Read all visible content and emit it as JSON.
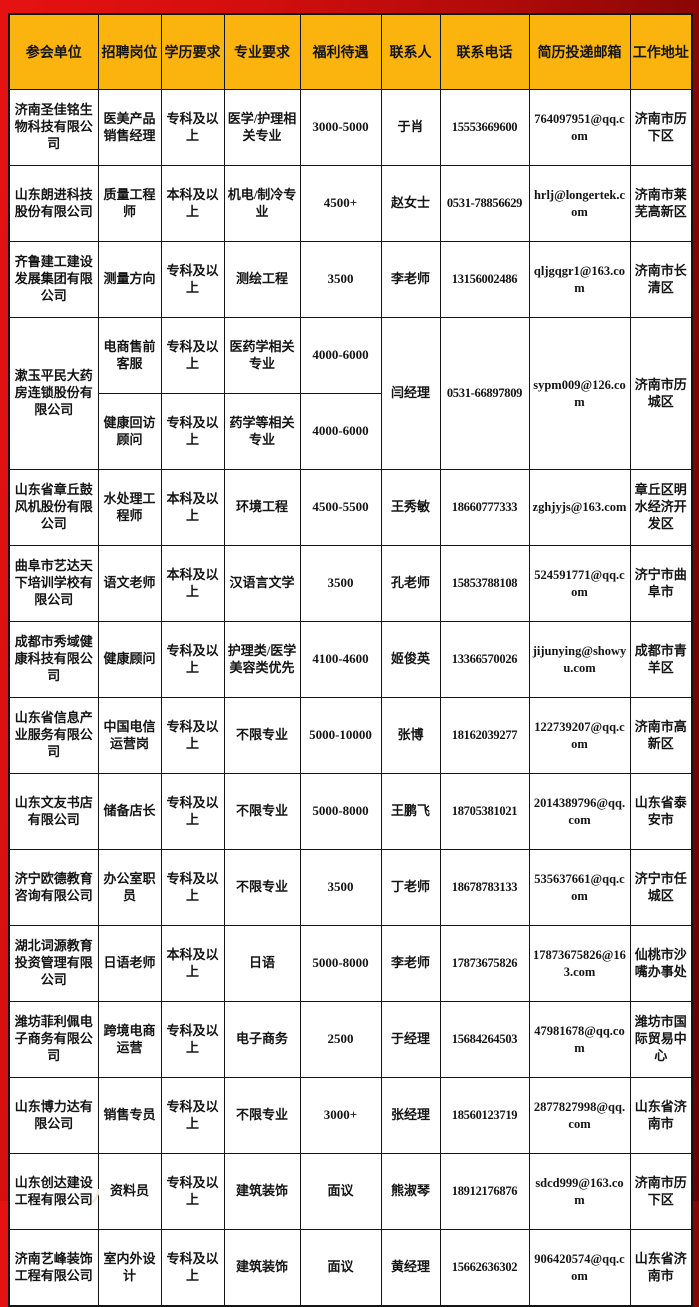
{
  "page": {
    "background_colors": [
      "#e61212",
      "#b00a0a",
      "#640303"
    ],
    "header_bg_color": "#fbb40d",
    "cell_bg_color": "#ffffff",
    "border_color": "#141414",
    "text_color": "#141414"
  },
  "table": {
    "headers": [
      "参会单位",
      "招聘岗位",
      "学历要求",
      "专业要求",
      "福利待遇",
      "联系人",
      "联系电话",
      "简历投递邮箱",
      "工作地址"
    ],
    "companies": [
      {
        "name": "济南圣佳铭生物科技有限公司",
        "positions": [
          {
            "job": "医美产品销售经理",
            "edu": "专科及以上",
            "major": "医学/护理相关专业",
            "salary": "3000-5000"
          }
        ],
        "contact": "于肖",
        "phone": "15553669600",
        "email": "764097951@qq.com",
        "address": "济南市历下区"
      },
      {
        "name": "山东朗进科技股份有限公司",
        "positions": [
          {
            "job": "质量工程师",
            "edu": "本科及以上",
            "major": "机电/制冷专业",
            "salary": "4500+"
          }
        ],
        "contact": "赵女士",
        "phone": "0531-78856629",
        "email": "hrlj@longertek.com",
        "address": "济南市莱芜高新区"
      },
      {
        "name": "齐鲁建工建设发展集团有限公司",
        "positions": [
          {
            "job": "测量方向",
            "edu": "专科及以上",
            "major": "测绘工程",
            "salary": "3500"
          }
        ],
        "contact": "李老师",
        "phone": "13156002486",
        "email": "qljgqgr1@163.com",
        "address": "济南市长清区"
      },
      {
        "name": "漱玉平民大药房连锁股份有限公司",
        "positions": [
          {
            "job": "电商售前客服",
            "edu": "专科及以上",
            "major": "医药学相关专业",
            "salary": "4000-6000"
          },
          {
            "job": "健康回访顾问",
            "edu": "专科及以上",
            "major": "药学等相关专业",
            "salary": "4000-6000"
          }
        ],
        "contact": "闫经理",
        "phone": "0531-66897809",
        "email": "sypm009@126.com",
        "address": "济南市历城区"
      },
      {
        "name": "山东省章丘鼓风机股份有限公司",
        "positions": [
          {
            "job": "水处理工程师",
            "edu": "本科及以上",
            "major": "环境工程",
            "salary": "4500-5500"
          }
        ],
        "contact": "王秀敏",
        "phone": "18660777333",
        "email": "zghjyjs@163.com",
        "address": "章丘区明水经济开发区"
      },
      {
        "name": "曲阜市艺达天下培训学校有限公司",
        "positions": [
          {
            "job": "语文老师",
            "edu": "本科及以上",
            "major": "汉语言文学",
            "salary": "3500"
          }
        ],
        "contact": "孔老师",
        "phone": "15853788108",
        "email": "524591771@qq.com",
        "address": "济宁市曲阜市"
      },
      {
        "name": "成都市秀域健康科技有限公司",
        "positions": [
          {
            "job": "健康顾问",
            "edu": "专科及以上",
            "major": "护理类/医学美容类优先",
            "salary": "4100-4600"
          }
        ],
        "contact": "姬俊英",
        "phone": "13366570026",
        "email": "jijunying@showyu.com",
        "address": "成都市青羊区"
      },
      {
        "name": "山东省信息产业服务有限公司",
        "positions": [
          {
            "job": "中国电信运营岗",
            "edu": "专科及以上",
            "major": "不限专业",
            "salary": "5000-10000"
          }
        ],
        "contact": "张博",
        "phone": "18162039277",
        "email": "122739207@qq.com",
        "address": "济南市高新区"
      },
      {
        "name": "山东文友书店有限公司",
        "positions": [
          {
            "job": "储备店长",
            "edu": "专科及以上",
            "major": "不限专业",
            "salary": "5000-8000"
          }
        ],
        "contact": "王鹏飞",
        "phone": "18705381021",
        "email": "2014389796@qq.com",
        "address": "山东省泰安市"
      },
      {
        "name": "济宁欧德教育咨询有限公司",
        "positions": [
          {
            "job": "办公室职员",
            "edu": "专科及以上",
            "major": "不限专业",
            "salary": "3500"
          }
        ],
        "contact": "丁老师",
        "phone": "18678783133",
        "email": "535637661@qq.com",
        "address": "济宁市任城区"
      },
      {
        "name": "湖北词源教育投资管理有限公司",
        "positions": [
          {
            "job": "日语老师",
            "edu": "本科及以上",
            "major": "日语",
            "salary": "5000-8000"
          }
        ],
        "contact": "李老师",
        "phone": "17873675826",
        "email": "17873675826@163.com",
        "address": "仙桃市沙嘴办事处"
      },
      {
        "name": "潍坊菲利佩电子商务有限公司",
        "positions": [
          {
            "job": "跨境电商运营",
            "edu": "专科及以上",
            "major": "电子商务",
            "salary": "2500"
          }
        ],
        "contact": "于经理",
        "phone": "15684264503",
        "email": "47981678@qq.com",
        "address": "潍坊市国际贸易中心"
      },
      {
        "name": "山东博力达有限公司",
        "positions": [
          {
            "job": "销售专员",
            "edu": "专科及以上",
            "major": "不限专业",
            "salary": "3000+"
          }
        ],
        "contact": "张经理",
        "phone": "18560123719",
        "email": "2877827998@qq.com",
        "address": "山东省济南市"
      },
      {
        "name": "山东创达建设工程有限公司",
        "positions": [
          {
            "job": "资料员",
            "edu": "专科及以上",
            "major": "建筑装饰",
            "salary": "面议"
          }
        ],
        "contact": "熊淑琴",
        "phone": "18912176876",
        "email": "sdcd999@163.com",
        "address": "济南市历下区"
      },
      {
        "name": "济南艺峰装饰工程有限公司",
        "positions": [
          {
            "job": "室内外设计",
            "edu": "专科及以上",
            "major": "建筑装饰",
            "salary": "面议"
          }
        ],
        "contact": "黄经理",
        "phone": "15662636302",
        "email": "906420574@qq.com",
        "address": "山东省济南市"
      }
    ]
  }
}
